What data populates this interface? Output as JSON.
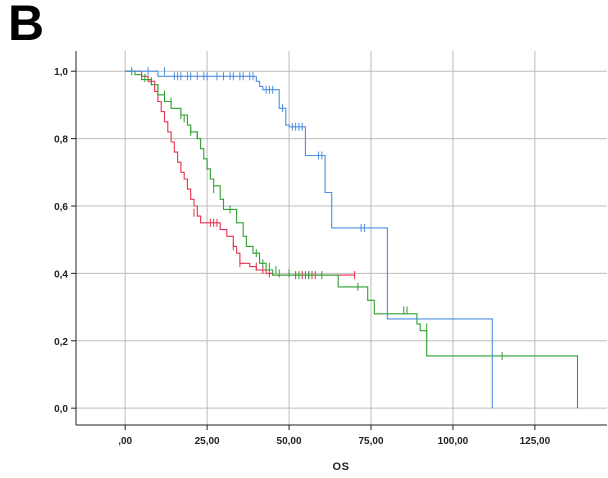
{
  "panel_label": "B",
  "chart_data": {
    "type": "line",
    "step": true,
    "title": "",
    "xlabel": "OS",
    "ylabel": "",
    "xlim": [
      -15,
      147
    ],
    "ylim": [
      -0.05,
      1.06
    ],
    "x_ticks": [
      0,
      25,
      50,
      75,
      100,
      125
    ],
    "x_tick_labels": [
      ",00",
      "25,00",
      "50,00",
      "75,00",
      "100,00",
      "125,00"
    ],
    "y_ticks": [
      0,
      0.2,
      0.4,
      0.6,
      0.8,
      1.0
    ],
    "y_tick_labels": [
      "0,0",
      "0,2",
      "0,4",
      "0,6",
      "0,8",
      "1,0"
    ],
    "grid": true,
    "series": [
      {
        "color": "#e8304f",
        "points": [
          [
            0,
            1
          ],
          [
            5,
            1
          ],
          [
            5,
            0.985
          ],
          [
            7,
            0.985
          ],
          [
            7,
            0.97
          ],
          [
            9,
            0.97
          ],
          [
            9,
            0.94
          ],
          [
            10,
            0.94
          ],
          [
            10,
            0.91
          ],
          [
            11,
            0.91
          ],
          [
            11,
            0.88
          ],
          [
            12,
            0.88
          ],
          [
            12,
            0.85
          ],
          [
            13,
            0.85
          ],
          [
            13,
            0.82
          ],
          [
            14,
            0.82
          ],
          [
            14,
            0.79
          ],
          [
            15,
            0.79
          ],
          [
            15,
            0.76
          ],
          [
            16,
            0.76
          ],
          [
            16,
            0.73
          ],
          [
            17,
            0.73
          ],
          [
            17,
            0.7
          ],
          [
            18,
            0.7
          ],
          [
            18,
            0.68
          ],
          [
            19,
            0.68
          ],
          [
            19,
            0.65
          ],
          [
            20,
            0.65
          ],
          [
            20,
            0.62
          ],
          [
            21,
            0.62
          ],
          [
            21,
            0.6
          ],
          [
            22,
            0.6
          ],
          [
            22,
            0.57
          ],
          [
            23,
            0.57
          ],
          [
            23,
            0.55
          ],
          [
            29,
            0.55
          ],
          [
            29,
            0.53
          ],
          [
            31,
            0.53
          ],
          [
            31,
            0.51
          ],
          [
            33,
            0.51
          ],
          [
            33,
            0.48
          ],
          [
            34,
            0.48
          ],
          [
            34,
            0.46
          ],
          [
            35,
            0.46
          ],
          [
            35,
            0.43
          ],
          [
            38,
            0.43
          ],
          [
            38,
            0.42
          ],
          [
            40,
            0.42
          ],
          [
            40,
            0.41
          ],
          [
            43,
            0.41
          ],
          [
            43,
            0.4
          ],
          [
            45,
            0.4
          ],
          [
            45,
            0.395
          ],
          [
            70,
            0.395
          ]
        ],
        "censored": [
          [
            21,
            0.58
          ],
          [
            26,
            0.55
          ],
          [
            27,
            0.55
          ],
          [
            28,
            0.55
          ],
          [
            33,
            0.48
          ],
          [
            35,
            0.43
          ],
          [
            40,
            0.42
          ],
          [
            42,
            0.41
          ],
          [
            44,
            0.4
          ],
          [
            52,
            0.395
          ],
          [
            54,
            0.395
          ],
          [
            55,
            0.395
          ],
          [
            56,
            0.395
          ],
          [
            57,
            0.395
          ],
          [
            58,
            0.395
          ],
          [
            70,
            0.395
          ]
        ]
      },
      {
        "color": "#2ea02e",
        "points": [
          [
            0,
            1
          ],
          [
            3,
            1
          ],
          [
            3,
            0.99
          ],
          [
            5,
            0.99
          ],
          [
            5,
            0.975
          ],
          [
            8,
            0.975
          ],
          [
            8,
            0.96
          ],
          [
            10,
            0.96
          ],
          [
            10,
            0.93
          ],
          [
            12,
            0.93
          ],
          [
            12,
            0.91
          ],
          [
            14,
            0.91
          ],
          [
            14,
            0.89
          ],
          [
            17,
            0.89
          ],
          [
            17,
            0.87
          ],
          [
            19,
            0.87
          ],
          [
            19,
            0.84
          ],
          [
            20,
            0.84
          ],
          [
            20,
            0.82
          ],
          [
            22,
            0.82
          ],
          [
            22,
            0.8
          ],
          [
            23,
            0.8
          ],
          [
            23,
            0.77
          ],
          [
            24,
            0.77
          ],
          [
            24,
            0.74
          ],
          [
            25,
            0.74
          ],
          [
            25,
            0.71
          ],
          [
            26,
            0.71
          ],
          [
            26,
            0.68
          ],
          [
            27,
            0.68
          ],
          [
            27,
            0.66
          ],
          [
            29,
            0.66
          ],
          [
            29,
            0.62
          ],
          [
            30,
            0.62
          ],
          [
            30,
            0.59
          ],
          [
            34,
            0.59
          ],
          [
            34,
            0.55
          ],
          [
            36,
            0.55
          ],
          [
            36,
            0.51
          ],
          [
            37,
            0.51
          ],
          [
            37,
            0.48
          ],
          [
            39,
            0.48
          ],
          [
            39,
            0.46
          ],
          [
            41,
            0.46
          ],
          [
            41,
            0.43
          ],
          [
            43,
            0.43
          ],
          [
            43,
            0.41
          ],
          [
            45,
            0.41
          ],
          [
            45,
            0.395
          ],
          [
            65,
            0.395
          ],
          [
            65,
            0.36
          ],
          [
            74,
            0.36
          ],
          [
            74,
            0.32
          ],
          [
            76,
            0.32
          ],
          [
            76,
            0.28
          ],
          [
            89,
            0.28
          ],
          [
            89,
            0.25
          ],
          [
            90,
            0.25
          ],
          [
            90,
            0.23
          ],
          [
            92,
            0.23
          ],
          [
            92,
            0.155
          ],
          [
            138,
            0.155
          ],
          [
            138,
            0.0
          ]
        ],
        "censored": [
          [
            2,
            1.0
          ],
          [
            6,
            0.98
          ],
          [
            8,
            0.97
          ],
          [
            10,
            0.95
          ],
          [
            12,
            0.93
          ],
          [
            14,
            0.91
          ],
          [
            17,
            0.87
          ],
          [
            18,
            0.86
          ],
          [
            20,
            0.82
          ],
          [
            22,
            0.81
          ],
          [
            25,
            0.72
          ],
          [
            27,
            0.65
          ],
          [
            30,
            0.61
          ],
          [
            32,
            0.59
          ],
          [
            39,
            0.47
          ],
          [
            40,
            0.46
          ],
          [
            42,
            0.43
          ],
          [
            44,
            0.42
          ],
          [
            46,
            0.41
          ],
          [
            47,
            0.4
          ],
          [
            50,
            0.4
          ],
          [
            53,
            0.395
          ],
          [
            56,
            0.395
          ],
          [
            60,
            0.395
          ],
          [
            71,
            0.36
          ],
          [
            85,
            0.29
          ],
          [
            86,
            0.29
          ],
          [
            92,
            0.24
          ],
          [
            115,
            0.155
          ]
        ]
      },
      {
        "color": "#4b8fe0",
        "points": [
          [
            0,
            1
          ],
          [
            10,
            1
          ],
          [
            10,
            0.985
          ],
          [
            40,
            0.985
          ],
          [
            40,
            0.97
          ],
          [
            41,
            0.97
          ],
          [
            41,
            0.955
          ],
          [
            42,
            0.955
          ],
          [
            42,
            0.945
          ],
          [
            47,
            0.945
          ],
          [
            47,
            0.89
          ],
          [
            49,
            0.89
          ],
          [
            49,
            0.84
          ],
          [
            50,
            0.84
          ],
          [
            50,
            0.835
          ],
          [
            55,
            0.835
          ],
          [
            55,
            0.75
          ],
          [
            61,
            0.75
          ],
          [
            61,
            0.64
          ],
          [
            63,
            0.64
          ],
          [
            63,
            0.535
          ],
          [
            80,
            0.535
          ],
          [
            80,
            0.265
          ],
          [
            112,
            0.265
          ],
          [
            112,
            0.0
          ]
        ],
        "censored": [
          [
            7,
            1.0
          ],
          [
            12,
            1.0
          ],
          [
            15,
            0.985
          ],
          [
            16,
            0.985
          ],
          [
            17,
            0.985
          ],
          [
            19,
            0.985
          ],
          [
            20,
            0.985
          ],
          [
            22,
            0.985
          ],
          [
            24,
            0.985
          ],
          [
            25,
            0.985
          ],
          [
            28,
            0.985
          ],
          [
            30,
            0.985
          ],
          [
            32,
            0.985
          ],
          [
            33,
            0.985
          ],
          [
            35,
            0.985
          ],
          [
            36,
            0.985
          ],
          [
            38,
            0.985
          ],
          [
            39,
            0.985
          ],
          [
            43,
            0.945
          ],
          [
            44,
            0.945
          ],
          [
            45,
            0.945
          ],
          [
            48,
            0.89
          ],
          [
            51,
            0.835
          ],
          [
            52,
            0.835
          ],
          [
            53,
            0.835
          ],
          [
            54,
            0.835
          ],
          [
            59,
            0.75
          ],
          [
            60,
            0.75
          ],
          [
            72,
            0.535
          ],
          [
            73,
            0.535
          ]
        ]
      }
    ]
  }
}
